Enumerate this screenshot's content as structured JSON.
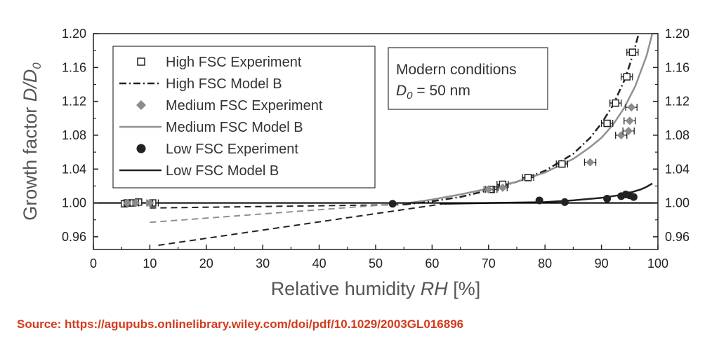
{
  "chart_data": {
    "type": "scatter",
    "xlabel": {
      "prefix": "Relative humidity ",
      "italic": "RH",
      "suffix": " [%]"
    },
    "ylabel": {
      "prefix": "Growth factor ",
      "italic": "D/D",
      "sub": "0"
    },
    "xlim": [
      0,
      100
    ],
    "ylim": [
      0.945,
      1.2
    ],
    "xticks": [
      0,
      10,
      20,
      30,
      40,
      50,
      60,
      70,
      80,
      90,
      100
    ],
    "yticks": [
      0.96,
      1.0,
      1.04,
      1.08,
      1.12,
      1.16,
      1.2
    ],
    "ytick_labels": [
      "0.96",
      "1.00",
      "1.04",
      "1.08",
      "1.12",
      "1.16",
      "1.20"
    ],
    "legend": {
      "position": "top-left",
      "entries": [
        {
          "label": "High FSC Experiment",
          "marker": "open-square"
        },
        {
          "label": "High FSC Model B",
          "line": "dash-dot"
        },
        {
          "label": "Medium FSC Experiment",
          "marker": "gray-diamond"
        },
        {
          "label": "Medium FSC Model B",
          "line": "gray-solid"
        },
        {
          "label": "Low FSC Experiment",
          "marker": "black-circle"
        },
        {
          "label": "Low FSC Model B",
          "line": "black-solid"
        }
      ]
    },
    "annotation": {
      "line1": "Modern conditions",
      "line2_italic": "D",
      "line2_sub": "0",
      "line2_rest": " = 50 nm"
    },
    "reference_line": {
      "y": 1.0
    },
    "series": [
      {
        "name": "High FSC Experiment",
        "marker": "square",
        "color": "#222222",
        "x": [
          5.5,
          6.0,
          7.0,
          8.0,
          10.5,
          70.5,
          72.5,
          77.0,
          83.0,
          91.0,
          92.5,
          94.5,
          95.5
        ],
        "y": [
          0.999,
          1.0,
          1.0,
          1.001,
          1.0,
          1.016,
          1.022,
          1.03,
          1.046,
          1.094,
          1.118,
          1.149,
          1.178
        ],
        "xerr": [
          0.5,
          0.5,
          0.5,
          0.5,
          1.0,
          1.0,
          1.0,
          1.0,
          1.0,
          1.0,
          1.0,
          1.0,
          1.0
        ]
      },
      {
        "name": "Medium FSC Experiment",
        "marker": "diamond",
        "color": "#8c8c8c",
        "x": [
          6.0,
          7.5,
          10.0,
          70.0,
          72.5,
          88.0,
          93.5,
          94.8,
          95.0,
          95.3
        ],
        "y": [
          1.0,
          1.0,
          1.0,
          1.016,
          1.018,
          1.048,
          1.08,
          1.085,
          1.097,
          1.113
        ],
        "xerr": [
          0.5,
          0.5,
          0.5,
          0.8,
          0.8,
          1.0,
          1.0,
          1.0,
          1.0,
          1.0
        ]
      },
      {
        "name": "Low FSC Experiment",
        "marker": "circle",
        "color": "#222222",
        "x": [
          53.0,
          79.0,
          83.5,
          91.0,
          93.5,
          94.3,
          95.0,
          95.7
        ],
        "y": [
          0.999,
          1.003,
          1.001,
          1.005,
          1.008,
          1.01,
          1.009,
          1.007
        ]
      }
    ],
    "models": [
      {
        "name": "High FSC Model B",
        "color": "#222222",
        "dash": "10,4,2,4",
        "width": 2.5,
        "x": [
          55,
          60,
          65,
          70,
          75,
          80,
          85,
          88,
          90,
          92,
          94,
          95,
          96,
          97,
          97.8
        ],
        "y": [
          0.998,
          1.002,
          1.007,
          1.015,
          1.025,
          1.038,
          1.058,
          1.077,
          1.094,
          1.115,
          1.144,
          1.163,
          1.185,
          1.21,
          1.235
        ]
      },
      {
        "name": "High FSC Model B (extrapolated)",
        "color": "#222222",
        "dash": "9,6",
        "width": 2,
        "x": [
          10,
          55
        ],
        "y": [
          0.994,
          0.998
        ]
      },
      {
        "name": "Medium FSC Model B",
        "color": "#909090",
        "dash": "",
        "width": 2.5,
        "x": [
          56,
          60,
          65,
          70,
          75,
          80,
          85,
          88,
          90,
          92,
          94,
          96,
          98,
          99
        ],
        "y": [
          1.0,
          1.004,
          1.01,
          1.017,
          1.025,
          1.036,
          1.052,
          1.066,
          1.077,
          1.092,
          1.112,
          1.138,
          1.174,
          1.2
        ]
      },
      {
        "name": "Medium FSC Model B (extrapolated)",
        "color": "#909090",
        "dash": "9,6",
        "width": 2,
        "x": [
          10,
          56
        ],
        "y": [
          0.977,
          1.0
        ]
      },
      {
        "name": "Low FSC Model B",
        "color": "#222222",
        "dash": "",
        "width": 2.5,
        "x": [
          62,
          70,
          80,
          85,
          90,
          93,
          95,
          97,
          98,
          99
        ],
        "y": [
          0.999,
          1.0,
          1.001,
          1.003,
          1.006,
          1.009,
          1.012,
          1.016,
          1.019,
          1.023
        ]
      },
      {
        "name": "Low FSC Model B (extrapolated)",
        "color": "#222222",
        "dash": "9,6",
        "width": 2,
        "x": [
          11.5,
          62
        ],
        "y": [
          0.95,
          0.999
        ]
      }
    ]
  },
  "source_text": "Source: https://agupubs.onlinelibrary.wiley.com/doi/pdf/10.1029/2003GL016896",
  "colors": {
    "source": "#d33a1c",
    "axis": "#222222",
    "medium": "#8c8c8c"
  }
}
